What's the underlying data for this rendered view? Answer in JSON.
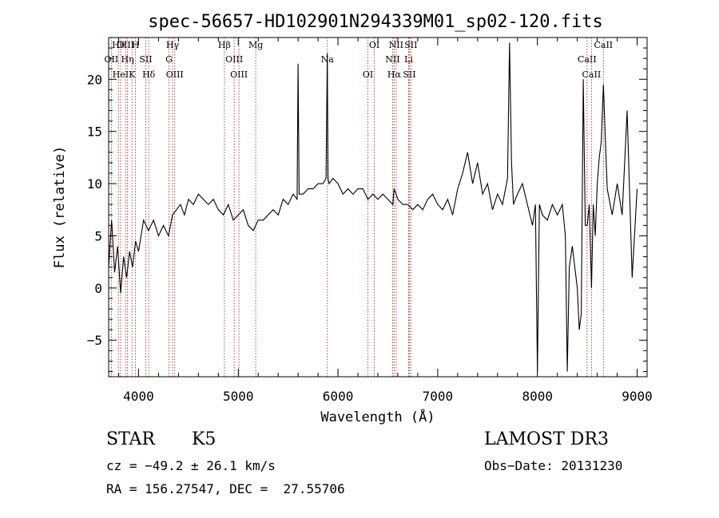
{
  "chart_data": {
    "type": "line",
    "title": "spec-56657-HD102901N294339M01_sp02-120.fits",
    "xlabel": "Wavelength (Å)",
    "ylabel": "Flux (relative)",
    "xlim": [
      3700,
      9100
    ],
    "ylim": [
      -8.5,
      24
    ],
    "xticks": [
      4000,
      5000,
      6000,
      7000,
      8000,
      9000
    ],
    "yticks": [
      -5,
      0,
      5,
      10,
      15,
      20
    ],
    "grid": false,
    "series": [
      {
        "name": "flux",
        "x": [
          3700,
          3730,
          3760,
          3790,
          3820,
          3850,
          3880,
          3910,
          3940,
          3970,
          4000,
          4050,
          4100,
          4150,
          4200,
          4250,
          4300,
          4340,
          4380,
          4420,
          4460,
          4500,
          4550,
          4600,
          4650,
          4700,
          4750,
          4800,
          4850,
          4900,
          4950,
          5000,
          5050,
          5100,
          5150,
          5200,
          5250,
          5300,
          5350,
          5400,
          5450,
          5500,
          5550,
          5590,
          5600,
          5610,
          5650,
          5700,
          5750,
          5800,
          5850,
          5880,
          5893,
          5900,
          5910,
          5950,
          6000,
          6050,
          6100,
          6150,
          6200,
          6250,
          6300,
          6350,
          6400,
          6450,
          6500,
          6550,
          6563,
          6600,
          6650,
          6700,
          6750,
          6800,
          6850,
          6900,
          6950,
          7000,
          7050,
          7100,
          7150,
          7200,
          7250,
          7300,
          7350,
          7400,
          7450,
          7500,
          7550,
          7600,
          7650,
          7700,
          7720,
          7740,
          7760,
          7800,
          7850,
          7900,
          7950,
          7980,
          8000,
          8020,
          8050,
          8100,
          8150,
          8200,
          8250,
          8280,
          8300,
          8320,
          8350,
          8400,
          8420,
          8440,
          8460,
          8480,
          8500,
          8520,
          8542,
          8560,
          8580,
          8600,
          8620,
          8640,
          8662,
          8680,
          8700,
          8750,
          8800,
          8850,
          8900,
          8950,
          9000
        ],
        "y": [
          2.0,
          6.5,
          1.5,
          4.0,
          -0.5,
          3.0,
          1.0,
          3.5,
          2.0,
          4.5,
          3.5,
          6.5,
          5.5,
          6.5,
          5.0,
          6.0,
          5.0,
          7.0,
          7.5,
          8.0,
          7.0,
          8.5,
          8.0,
          9.0,
          8.5,
          8.0,
          8.5,
          7.5,
          7.0,
          8.0,
          6.5,
          7.0,
          7.5,
          6.0,
          5.5,
          6.5,
          6.5,
          7.0,
          7.5,
          7.0,
          8.5,
          8.0,
          9.0,
          8.5,
          21.5,
          9.0,
          9.0,
          9.5,
          9.5,
          10.0,
          10.0,
          10.5,
          22.5,
          10.5,
          10.0,
          10.5,
          10.0,
          9.0,
          9.5,
          9.0,
          9.5,
          9.5,
          8.5,
          9.0,
          8.5,
          9.0,
          8.5,
          8.0,
          9.5,
          8.5,
          8.0,
          8.0,
          7.5,
          8.0,
          7.5,
          8.5,
          9.0,
          8.0,
          7.5,
          8.5,
          7.0,
          9.5,
          11.0,
          13.0,
          10.0,
          12.0,
          9.0,
          10.0,
          7.5,
          9.0,
          8.0,
          10.5,
          23.5,
          12.0,
          8.0,
          9.0,
          10.0,
          8.0,
          6.0,
          8.0,
          -8.0,
          8.0,
          7.0,
          6.5,
          8.0,
          7.0,
          8.0,
          5.0,
          -8.0,
          2.0,
          4.0,
          0.0,
          -4.0,
          -2.5,
          20.0,
          6.0,
          6.0,
          8.0,
          0.0,
          8.0,
          5.0,
          10.0,
          12.5,
          14.0,
          19.5,
          14.5,
          9.5,
          7.0,
          10.0,
          7.0,
          17.0,
          1.0,
          9.5
        ]
      }
    ],
    "lines": [
      {
        "label": "Hθ",
        "wave": 3798
      },
      {
        "label": "OII",
        "wave": 3727
      },
      {
        "label": "HeI",
        "wave": 3820
      },
      {
        "label": "OIII",
        "wave": 3869
      },
      {
        "label": "Hη",
        "wave": 3889
      },
      {
        "label": "K",
        "wave": 3934
      },
      {
        "label": "H",
        "wave": 3969
      },
      {
        "label": "SII",
        "wave": 4072
      },
      {
        "label": "Hδ",
        "wave": 4102
      },
      {
        "label": "Hγ",
        "wave": 4341
      },
      {
        "label": "G",
        "wave": 4305
      },
      {
        "label": "OIII",
        "wave": 4363
      },
      {
        "label": "Hβ",
        "wave": 4861
      },
      {
        "label": "OIII",
        "wave": 4959
      },
      {
        "label": "OIII",
        "wave": 5007
      },
      {
        "label": "Mg",
        "wave": 5175
      },
      {
        "label": "Na",
        "wave": 5893
      },
      {
        "label": "OI",
        "wave": 6300
      },
      {
        "label": "OI",
        "wave": 6364
      },
      {
        "label": "NII",
        "wave": 6548
      },
      {
        "label": "Hα",
        "wave": 6563
      },
      {
        "label": "NII",
        "wave": 6583
      },
      {
        "label": "Li",
        "wave": 6708
      },
      {
        "label": "SII",
        "wave": 6716
      },
      {
        "label": "SII",
        "wave": 6731
      },
      {
        "label": "CaII",
        "wave": 8498
      },
      {
        "label": "CaII",
        "wave": 8542
      },
      {
        "label": "CaII",
        "wave": 8662
      }
    ]
  },
  "info": {
    "class": "STAR",
    "subclass": "K5",
    "survey": "LAMOST DR3",
    "cz": "cz = −49.2 ± 26.1 km/s",
    "obs_date": "Obs−Date: 20131230",
    "coords": "RA = 156.27547, DEC =  27.55706"
  }
}
